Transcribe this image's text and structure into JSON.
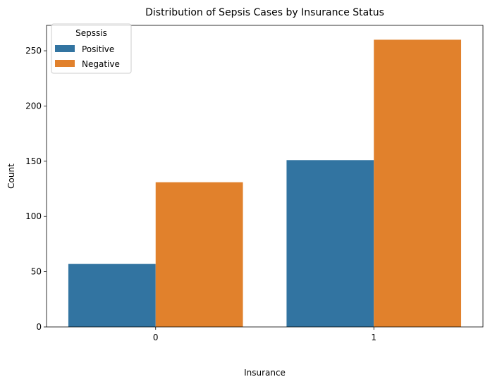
{
  "chart_data": {
    "type": "bar",
    "title": "Distribution of Sepsis Cases by Insurance Status",
    "xlabel": "Insurance",
    "ylabel": "Count",
    "categories": [
      "0",
      "1"
    ],
    "series": [
      {
        "name": "Positive",
        "values": [
          57,
          151
        ],
        "color": "#3274a1"
      },
      {
        "name": "Negative",
        "values": [
          131,
          260
        ],
        "color": "#e1812c"
      }
    ],
    "ylim": [
      0,
      273
    ],
    "yticks": [
      0,
      50,
      100,
      150,
      200,
      250
    ],
    "legend": {
      "title": "Sepssis",
      "placement": "top-left"
    },
    "grid": false
  }
}
